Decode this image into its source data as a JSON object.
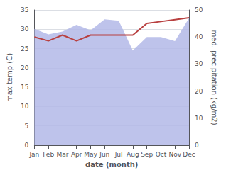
{
  "chart_data": {
    "type": "line",
    "xlabel": "date (month)",
    "ylabel": "max temp (C)",
    "y2label": "med. precipitation (kg/m2)",
    "categories": [
      "Jan",
      "Feb",
      "Mar",
      "Apr",
      "May",
      "Jun",
      "Jul",
      "Aug",
      "Sep",
      "Oct",
      "Nov",
      "Dec"
    ],
    "series": [
      {
        "type": "area",
        "color": "#b3b9e8",
        "axis": "y2",
        "values": [
          43,
          41,
          42,
          44.5,
          42.5,
          46.5,
          46,
          35,
          40,
          40,
          38.5,
          47
        ]
      },
      {
        "type": "line",
        "color": "#b84040",
        "values": [
          28,
          27,
          28.5,
          27,
          28.5,
          28.5,
          28.5,
          28.5,
          31.5,
          32,
          32.5,
          33
        ]
      }
    ],
    "ylim": [
      0,
      35
    ],
    "yticks": [
      0,
      5,
      10,
      15,
      20,
      25,
      30,
      35
    ],
    "y2lim": [
      0,
      50
    ],
    "y2ticks": [
      0,
      10,
      20,
      30,
      40,
      50
    ],
    "grid": true
  }
}
